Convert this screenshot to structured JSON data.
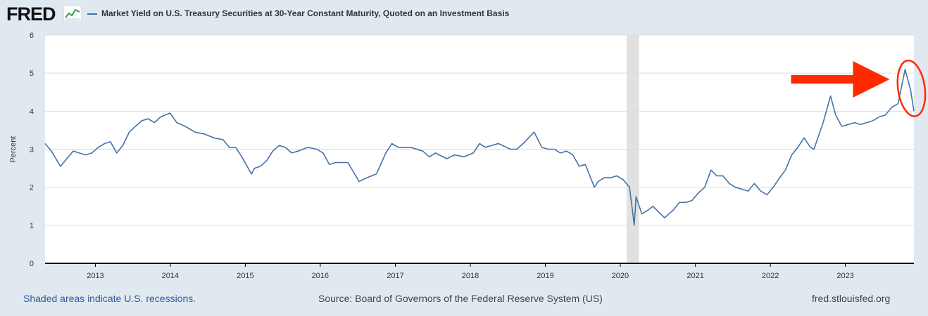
{
  "header": {
    "logo_text": "FRED",
    "logo_icon": "line-chart-icon",
    "series_title": "Market Yield on U.S. Treasury Securities at 30-Year Constant Maturity, Quoted on an Investment Basis"
  },
  "colors": {
    "series_line": "#4572a7",
    "recession_shade": "#e1e1e1",
    "annotation": "#ff2a00",
    "background": "#e1e9f0",
    "plot_background": "#ffffff",
    "grid": "#dddddd"
  },
  "chart_data": {
    "type": "line",
    "title": "",
    "ylabel": "Percent",
    "xlabel": "",
    "ylim": [
      0,
      6
    ],
    "yticks": [
      "0",
      "1",
      "2",
      "3",
      "4",
      "5",
      "6"
    ],
    "xlim": [
      "2012-05-01",
      "2023-12-01"
    ],
    "xticks": [
      "2013",
      "2014",
      "2015",
      "2016",
      "2017",
      "2018",
      "2019",
      "2020",
      "2021",
      "2022",
      "2023"
    ],
    "grid": true,
    "recessions": [
      {
        "start": "2020-02-01",
        "end": "2020-04-01"
      }
    ],
    "annotations": [
      {
        "type": "arrow",
        "label": "",
        "points_to": "2023-10-19"
      },
      {
        "type": "circle",
        "label": "",
        "around": "2023-10 to 2023-12"
      }
    ],
    "series": [
      {
        "name": "Market Yield on U.S. Treasury Securities at 30-Year Constant Maturity, Quoted on an Investment Basis",
        "x": [
          "2012-05-01",
          "2012-06-01",
          "2012-07-15",
          "2012-08-15",
          "2012-09-15",
          "2012-10-15",
          "2012-11-15",
          "2012-12-15",
          "2013-01-15",
          "2013-02-15",
          "2013-03-15",
          "2013-04-15",
          "2013-05-15",
          "2013-06-15",
          "2013-07-15",
          "2013-08-15",
          "2013-09-15",
          "2013-10-15",
          "2013-11-15",
          "2013-12-31",
          "2014-02-01",
          "2014-03-15",
          "2014-05-01",
          "2014-06-15",
          "2014-08-01",
          "2014-09-15",
          "2014-10-15",
          "2014-11-15",
          "2014-12-15",
          "2015-01-31",
          "2015-02-15",
          "2015-03-15",
          "2015-04-15",
          "2015-05-15",
          "2015-06-15",
          "2015-07-15",
          "2015-08-15",
          "2015-09-15",
          "2015-11-01",
          "2015-12-15",
          "2016-01-15",
          "2016-02-15",
          "2016-03-15",
          "2016-05-15",
          "2016-07-08",
          "2016-08-15",
          "2016-10-01",
          "2016-11-15",
          "2016-12-15",
          "2017-01-15",
          "2017-03-15",
          "2017-05-15",
          "2017-06-15",
          "2017-07-15",
          "2017-09-08",
          "2017-10-15",
          "2017-12-01",
          "2018-01-15",
          "2018-02-15",
          "2018-03-15",
          "2018-05-17",
          "2018-07-15",
          "2018-08-15",
          "2018-09-15",
          "2018-11-08",
          "2018-12-15",
          "2019-01-15",
          "2019-02-15",
          "2019-03-15",
          "2019-04-15",
          "2019-05-15",
          "2019-06-15",
          "2019-07-15",
          "2019-08-28",
          "2019-09-15",
          "2019-10-15",
          "2019-11-15",
          "2019-12-15",
          "2020-01-15",
          "2020-02-15",
          "2020-03-09",
          "2020-03-18",
          "2020-04-15",
          "2020-05-15",
          "2020-06-08",
          "2020-07-15",
          "2020-08-04",
          "2020-09-15",
          "2020-10-15",
          "2020-11-15",
          "2020-12-15",
          "2021-01-15",
          "2021-02-15",
          "2021-03-18",
          "2021-04-15",
          "2021-05-15",
          "2021-06-15",
          "2021-07-15",
          "2021-08-15",
          "2021-09-15",
          "2021-10-15",
          "2021-11-15",
          "2021-12-15",
          "2022-01-15",
          "2022-02-15",
          "2022-03-15",
          "2022-04-15",
          "2022-05-15",
          "2022-06-14",
          "2022-07-15",
          "2022-08-01",
          "2022-09-15",
          "2022-10-21",
          "2022-11-15",
          "2022-12-15",
          "2023-01-15",
          "2023-02-15",
          "2023-03-15",
          "2023-04-15",
          "2023-05-15",
          "2023-06-15",
          "2023-07-15",
          "2023-08-15",
          "2023-09-15",
          "2023-10-19",
          "2023-11-15",
          "2023-12-01"
        ],
        "values": [
          3.15,
          2.95,
          2.55,
          2.75,
          2.95,
          2.9,
          2.85,
          2.9,
          3.05,
          3.15,
          3.2,
          2.9,
          3.1,
          3.45,
          3.6,
          3.75,
          3.8,
          3.7,
          3.85,
          3.95,
          3.7,
          3.6,
          3.45,
          3.4,
          3.3,
          3.25,
          3.05,
          3.05,
          2.8,
          2.35,
          2.5,
          2.55,
          2.7,
          2.95,
          3.1,
          3.05,
          2.9,
          2.95,
          3.05,
          3.0,
          2.9,
          2.6,
          2.65,
          2.65,
          2.15,
          2.25,
          2.35,
          2.9,
          3.15,
          3.05,
          3.05,
          2.95,
          2.8,
          2.9,
          2.75,
          2.85,
          2.8,
          2.9,
          3.15,
          3.05,
          3.15,
          3.0,
          3.0,
          3.15,
          3.45,
          3.05,
          3.0,
          3.0,
          2.9,
          2.95,
          2.85,
          2.55,
          2.6,
          2.0,
          2.15,
          2.25,
          2.25,
          2.3,
          2.2,
          2.0,
          1.0,
          1.75,
          1.3,
          1.4,
          1.5,
          1.3,
          1.2,
          1.4,
          1.6,
          1.6,
          1.65,
          1.85,
          2.0,
          2.45,
          2.3,
          2.3,
          2.1,
          2.0,
          1.95,
          1.9,
          2.1,
          1.9,
          1.8,
          2.0,
          2.25,
          2.45,
          2.85,
          3.05,
          3.3,
          3.05,
          3.0,
          3.7,
          4.4,
          3.9,
          3.6,
          3.65,
          3.7,
          3.65,
          3.7,
          3.75,
          3.85,
          3.9,
          4.1,
          4.2,
          5.1,
          4.55,
          4.0
        ]
      }
    ]
  },
  "footer": {
    "recession_note": "Shaded areas indicate U.S. recessions.",
    "source": "Source: Board of Governors of the Federal Reserve System (US)",
    "site": "fred.stlouisfed.org"
  }
}
